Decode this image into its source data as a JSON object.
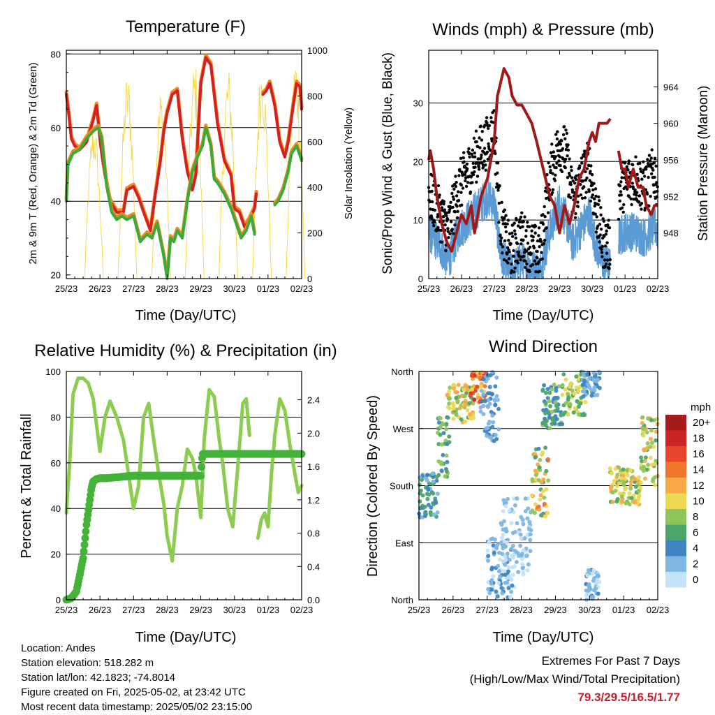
{
  "colors": {
    "red": "#d42020",
    "orange": "#ee8a1e",
    "green": "#3aab3a",
    "yellow": "#f7d740",
    "black": "#000000",
    "blue": "#5b9bd5",
    "maroon": "#a01818",
    "rh": "#8ccc50",
    "rain": "#45b23a"
  },
  "x_ticks": [
    "25/23",
    "26/23",
    "27/23",
    "28/23",
    "29/23",
    "30/23",
    "01/23",
    "02/23"
  ],
  "footer": {
    "location": "Location: Andes",
    "elevation": "Station elevation: 518.282 m",
    "latlon": "Station lat/lon: 42.1823; -74.8014",
    "created": "Figure created on Fri, 2025-05-02, at 23:42 UTC",
    "recent": "Most recent data timestamp: 2025/05/02 23:15:00",
    "extremes_title": "Extremes For Past 7 Days",
    "extremes_sub": "(High/Low/Max Wind/Total Precipitation)",
    "extremes_values": "79.3/29.5/16.5/1.77"
  },
  "chart_data": [
    {
      "id": "temperature",
      "type": "line",
      "title": "Temperature (F)",
      "xlabel": "Time (Day/UTC)",
      "ylabel": "2m & 9m T (Red, Orange) & 2m Td (Green)",
      "ylabel_right": "Solar Insolation (Yellow)",
      "x_ticks": [
        "25/23",
        "26/23",
        "27/23",
        "28/23",
        "29/23",
        "30/23",
        "01/23",
        "02/23"
      ],
      "xlim": [
        0,
        7
      ],
      "ylim": [
        19,
        81
      ],
      "yticks": [
        20,
        40,
        60,
        80
      ],
      "ylim_right": [
        0,
        1000
      ],
      "yticks_right": [
        0,
        200,
        400,
        600,
        800,
        1000
      ],
      "grid_y": [
        40,
        60,
        80
      ],
      "series": [
        {
          "name": "2m T",
          "color": "#d42020",
          "x": [
            0,
            0.08,
            0.15,
            0.25,
            0.4,
            0.6,
            0.8,
            0.9,
            1.0,
            1.05,
            1.15,
            1.3,
            1.5,
            1.7,
            1.8,
            2.0,
            2.15,
            2.3,
            2.5,
            2.65,
            2.8,
            2.9,
            3.0,
            3.15,
            3.3,
            3.45,
            3.6,
            3.75,
            3.85,
            4.0,
            4.15,
            4.3,
            4.5,
            4.7,
            4.9,
            5.0,
            5.15,
            5.3,
            5.45,
            5.6,
            5.65
          ],
          "y": [
            69,
            63,
            57,
            55,
            54,
            56,
            62,
            66,
            57,
            53,
            47,
            40,
            37,
            37,
            43,
            44,
            41,
            37,
            32,
            42,
            51,
            59,
            64,
            69,
            70,
            57,
            48,
            43,
            47,
            72,
            79,
            77,
            61,
            51,
            47,
            38,
            37,
            33,
            35,
            38,
            42
          ]
        },
        {
          "name": "2m T (after gap)",
          "color": "#d42020",
          "x": [
            5.85,
            5.95,
            6.05,
            6.2,
            6.35,
            6.5,
            6.6,
            6.75,
            6.85,
            6.95,
            7.0
          ],
          "y": [
            69,
            70,
            72,
            66,
            56,
            52,
            56,
            66,
            72,
            71,
            65
          ]
        },
        {
          "name": "2m Td",
          "color": "#3aab3a",
          "x": [
            0,
            0.05,
            0.2,
            0.4,
            0.6,
            0.8,
            0.95,
            1.05,
            1.2,
            1.35,
            1.5,
            1.65,
            1.8,
            2.0,
            2.2,
            2.4,
            2.55,
            2.7,
            2.9,
            3.0,
            3.1,
            3.2,
            3.3,
            3.45,
            3.6,
            3.75,
            3.9,
            4.05,
            4.15,
            4.3,
            4.4,
            4.5,
            4.7,
            4.9,
            5.05,
            5.2,
            5.35,
            5.5,
            5.6
          ],
          "y": [
            40,
            50,
            53,
            54,
            57,
            59,
            60,
            57,
            44,
            37,
            35,
            36,
            35,
            36,
            29,
            31,
            30,
            34,
            25,
            19,
            30,
            29,
            32,
            30,
            40,
            48,
            52,
            55,
            60,
            55,
            46,
            45,
            42,
            38,
            34,
            30,
            32,
            36,
            31
          ]
        },
        {
          "name": "2m Td (after gap)",
          "color": "#3aab3a",
          "x": [
            6.2,
            6.3,
            6.45,
            6.6,
            6.7,
            6.85,
            7.0
          ],
          "y": [
            39,
            40,
            43,
            48,
            53,
            55,
            51
          ]
        }
      ],
      "solar_peaks": [
        {
          "x": 0.82,
          "peak": 700
        },
        {
          "x": 1.82,
          "peak": 910
        },
        {
          "x": 2.82,
          "peak": 840
        },
        {
          "x": 3.82,
          "peak": 960
        },
        {
          "x": 4.82,
          "peak": 930
        },
        {
          "x": 5.82,
          "peak": 970
        },
        {
          "x": 6.82,
          "peak": 1000
        }
      ]
    },
    {
      "id": "winds",
      "type": "scatter",
      "title": "Winds (mph) & Pressure (mb)",
      "xlabel": "Time (Day/UTC)",
      "ylabel": "Sonic/Prop Wind & Gust (Blue, Black)",
      "ylabel_right": "Station Pressure (Maroon)",
      "x_ticks": [
        "25/23",
        "26/23",
        "27/23",
        "28/23",
        "29/23",
        "30/23",
        "01/23",
        "02/23"
      ],
      "xlim": [
        0,
        7
      ],
      "ylim": [
        0,
        39
      ],
      "yticks": [
        0,
        10,
        20,
        30
      ],
      "ylim_right": [
        943,
        968
      ],
      "yticks_right": [
        948,
        952,
        956,
        960,
        964
      ],
      "grid_y": [
        10,
        20,
        30
      ],
      "series": [
        {
          "name": "Pressure",
          "color": "#a01818",
          "x": [
            0,
            0.05,
            0.15,
            0.25,
            0.4,
            0.55,
            0.7,
            0.85,
            1.0,
            1.15,
            1.3,
            1.4,
            1.6,
            1.8,
            2.0,
            2.1,
            2.3,
            2.45,
            2.55,
            2.7,
            2.85,
            3.0,
            3.15,
            3.3,
            3.5,
            3.7,
            3.85,
            4.0,
            4.15,
            4.3,
            4.45,
            4.6,
            4.75,
            4.9,
            5.0,
            5.1,
            5.2,
            5.3,
            5.45,
            5.55
          ],
          "y": [
            956,
            957,
            955,
            952,
            949,
            947,
            946,
            948,
            950,
            949,
            951,
            948,
            952,
            954,
            958,
            963,
            966,
            965,
            963,
            962,
            962,
            961,
            960,
            958,
            955,
            952,
            951,
            948,
            951,
            949,
            951,
            954,
            955,
            958,
            959,
            958,
            960,
            960,
            960,
            960.5
          ]
        },
        {
          "name": "Pressure (after gap)",
          "color": "#a01818",
          "x": [
            5.8,
            5.9,
            6.0,
            6.1,
            6.25,
            6.4,
            6.55,
            6.65,
            6.8,
            6.9,
            7.0
          ],
          "y": [
            957,
            955,
            955,
            953,
            955,
            953,
            953,
            951,
            950,
            951,
            951
          ]
        }
      ],
      "wind_envelope": [
        {
          "x": 0.0,
          "wind": 8,
          "gust": 13
        },
        {
          "x": 0.3,
          "wind": 6,
          "gust": 10
        },
        {
          "x": 0.6,
          "wind": 3,
          "gust": 7
        },
        {
          "x": 0.9,
          "wind": 8,
          "gust": 14
        },
        {
          "x": 1.2,
          "wind": 10,
          "gust": 17
        },
        {
          "x": 1.5,
          "wind": 12,
          "gust": 20
        },
        {
          "x": 1.8,
          "wind": 14,
          "gust": 22
        },
        {
          "x": 2.0,
          "wind": 13,
          "gust": 24
        },
        {
          "x": 2.2,
          "wind": 4,
          "gust": 8
        },
        {
          "x": 2.5,
          "wind": 1,
          "gust": 3
        },
        {
          "x": 2.8,
          "wind": 3,
          "gust": 6
        },
        {
          "x": 3.1,
          "wind": 2,
          "gust": 4
        },
        {
          "x": 3.4,
          "wind": 1,
          "gust": 3
        },
        {
          "x": 3.7,
          "wind": 8,
          "gust": 16
        },
        {
          "x": 4.0,
          "wind": 13,
          "gust": 22
        },
        {
          "x": 4.2,
          "wind": 10,
          "gust": 20
        },
        {
          "x": 4.4,
          "wind": 6,
          "gust": 12
        },
        {
          "x": 4.7,
          "wind": 9,
          "gust": 16
        },
        {
          "x": 4.9,
          "wind": 11,
          "gust": 18
        },
        {
          "x": 5.1,
          "wind": 6,
          "gust": 11
        },
        {
          "x": 5.3,
          "wind": 3,
          "gust": 5
        },
        {
          "x": 5.55,
          "wind": 2,
          "gust": 4
        },
        {
          "x": 5.8,
          "wind": 7,
          "gust": 13
        },
        {
          "x": 6.0,
          "wind": 8,
          "gust": 15
        },
        {
          "x": 6.3,
          "wind": 8,
          "gust": 16
        },
        {
          "x": 6.6,
          "wind": 7,
          "gust": 14
        },
        {
          "x": 6.9,
          "wind": 9,
          "gust": 17
        },
        {
          "x": 7.0,
          "wind": 8,
          "gust": 14
        }
      ]
    },
    {
      "id": "humidity",
      "type": "line",
      "title": "Relative Humidity (%) & Precipitation (in)",
      "xlabel": "Time (Day/UTC)",
      "ylabel": "Percent & Total Rainfall",
      "x_ticks": [
        "25/23",
        "26/23",
        "27/23",
        "28/23",
        "29/23",
        "30/23",
        "01/23",
        "02/23"
      ],
      "xlim": [
        0,
        7
      ],
      "ylim": [
        0,
        100
      ],
      "yticks": [
        0,
        20,
        40,
        60,
        80,
        100
      ],
      "ylim_right": [
        0,
        2.74
      ],
      "yticks_right": [
        "0.0",
        "0.4",
        "0.8",
        "1.2",
        "1.6",
        "2.0",
        "2.4"
      ],
      "grid_y": [
        20,
        40,
        60,
        80
      ],
      "series": [
        {
          "name": "RH",
          "color": "#8ccc50",
          "x": [
            0,
            0.1,
            0.2,
            0.35,
            0.5,
            0.65,
            0.8,
            1.0,
            1.15,
            1.3,
            1.5,
            1.7,
            1.85,
            2.0,
            2.15,
            2.3,
            2.45,
            2.6,
            2.75,
            2.9,
            3.0,
            3.15,
            3.3,
            3.45,
            3.6,
            3.75,
            3.85,
            4.0,
            4.1,
            4.25,
            4.4,
            4.55,
            4.65,
            4.8,
            4.95,
            5.1,
            5.25,
            5.35,
            5.45
          ],
          "y": [
            38,
            60,
            90,
            97,
            97,
            95,
            88,
            65,
            80,
            87,
            80,
            70,
            55,
            40,
            50,
            80,
            86,
            70,
            55,
            42,
            28,
            17,
            40,
            50,
            66,
            62,
            55,
            36,
            70,
            92,
            89,
            70,
            60,
            40,
            32,
            58,
            86,
            88,
            72
          ]
        },
        {
          "name": "RH (after gap)",
          "color": "#8ccc50",
          "x": [
            5.7,
            5.8,
            5.9,
            6.0,
            6.1,
            6.2,
            6.35,
            6.5,
            6.65,
            6.8,
            6.9,
            7.0
          ],
          "y": [
            27,
            35,
            38,
            32,
            55,
            72,
            88,
            83,
            68,
            55,
            47,
            50
          ]
        },
        {
          "name": "Total Rainfall",
          "color": "#45b23a",
          "x": [
            0,
            0.15,
            0.3,
            0.4,
            0.5,
            0.6,
            0.7,
            0.75,
            0.8,
            0.9,
            1.0,
            1.1,
            1.2,
            1.5,
            2.0,
            2.5,
            3.0,
            3.5,
            4.0,
            4.05,
            4.5,
            5.0,
            5.5,
            6.0,
            6.5,
            7.0
          ],
          "y": [
            0,
            0.02,
            0.1,
            0.3,
            0.5,
            0.9,
            1.2,
            1.35,
            1.42,
            1.45,
            1.46,
            1.46,
            1.46,
            1.47,
            1.49,
            1.49,
            1.49,
            1.49,
            1.49,
            1.75,
            1.75,
            1.75,
            1.75,
            1.75,
            1.75,
            1.75
          ]
        }
      ]
    },
    {
      "id": "wind_direction",
      "type": "scatter",
      "title": "Wind Direction",
      "xlabel": "Time (Day/UTC)",
      "ylabel": "Direction (Colored By Speed)",
      "x_ticks": [
        "25/23",
        "26/23",
        "27/23",
        "28/23",
        "29/23",
        "30/23",
        "01/23",
        "02/23"
      ],
      "xlim": [
        0,
        7
      ],
      "ylim": [
        0,
        360
      ],
      "ytick_labels": [
        "North",
        "East",
        "South",
        "West",
        "North"
      ],
      "yticks": [
        0,
        90,
        180,
        270,
        360
      ],
      "grid_y": [
        90,
        180,
        270
      ],
      "legend": {
        "title": "mph",
        "labels": [
          "20+",
          "18",
          "16",
          "14",
          "12",
          "10",
          "8",
          "6",
          "4",
          "2",
          "0"
        ],
        "colors": [
          "#a31b1b",
          "#cc2424",
          "#e8462a",
          "#f2762e",
          "#f7a947",
          "#ecd851",
          "#8fc45a",
          "#4aa66a",
          "#3f85c2",
          "#80b6e2",
          "#c4e2f7"
        ]
      },
      "clusters": [
        {
          "x": [
            0.0,
            0.55
          ],
          "dir": [
            130,
            200
          ],
          "speed": [
            2,
            7
          ]
        },
        {
          "x": [
            0.55,
            0.9
          ],
          "dir": [
            190,
            290
          ],
          "speed": [
            3,
            9
          ]
        },
        {
          "x": [
            0.8,
            1.6
          ],
          "dir": [
            280,
            340
          ],
          "speed": [
            6,
            13
          ]
        },
        {
          "x": [
            1.5,
            1.95
          ],
          "dir": [
            310,
            360
          ],
          "speed": [
            10,
            18
          ]
        },
        {
          "x": [
            1.8,
            2.35
          ],
          "dir": [
            250,
            360
          ],
          "speed": [
            1,
            5
          ]
        },
        {
          "x": [
            2.0,
            2.8
          ],
          "dir": [
            0,
            100
          ],
          "speed": [
            0,
            4
          ]
        },
        {
          "x": [
            2.4,
            3.3
          ],
          "dir": [
            40,
            160
          ],
          "speed": [
            0,
            3
          ]
        },
        {
          "x": [
            3.3,
            3.8
          ],
          "dir": [
            130,
            240
          ],
          "speed": [
            4,
            14
          ]
        },
        {
          "x": [
            3.6,
            4.2
          ],
          "dir": [
            270,
            340
          ],
          "speed": [
            3,
            8
          ]
        },
        {
          "x": [
            4.2,
            4.9
          ],
          "dir": [
            290,
            360
          ],
          "speed": [
            5,
            11
          ]
        },
        {
          "x": [
            4.8,
            5.3
          ],
          "dir": [
            320,
            360
          ],
          "speed": [
            1,
            5
          ]
        },
        {
          "x": [
            4.9,
            5.3
          ],
          "dir": [
            0,
            50
          ],
          "speed": [
            0,
            4
          ]
        },
        {
          "x": [
            5.6,
            6.5
          ],
          "dir": [
            150,
            210
          ],
          "speed": [
            6,
            12
          ]
        },
        {
          "x": [
            6.5,
            7.0
          ],
          "dir": [
            180,
            290
          ],
          "speed": [
            5,
            12
          ]
        }
      ]
    }
  ]
}
